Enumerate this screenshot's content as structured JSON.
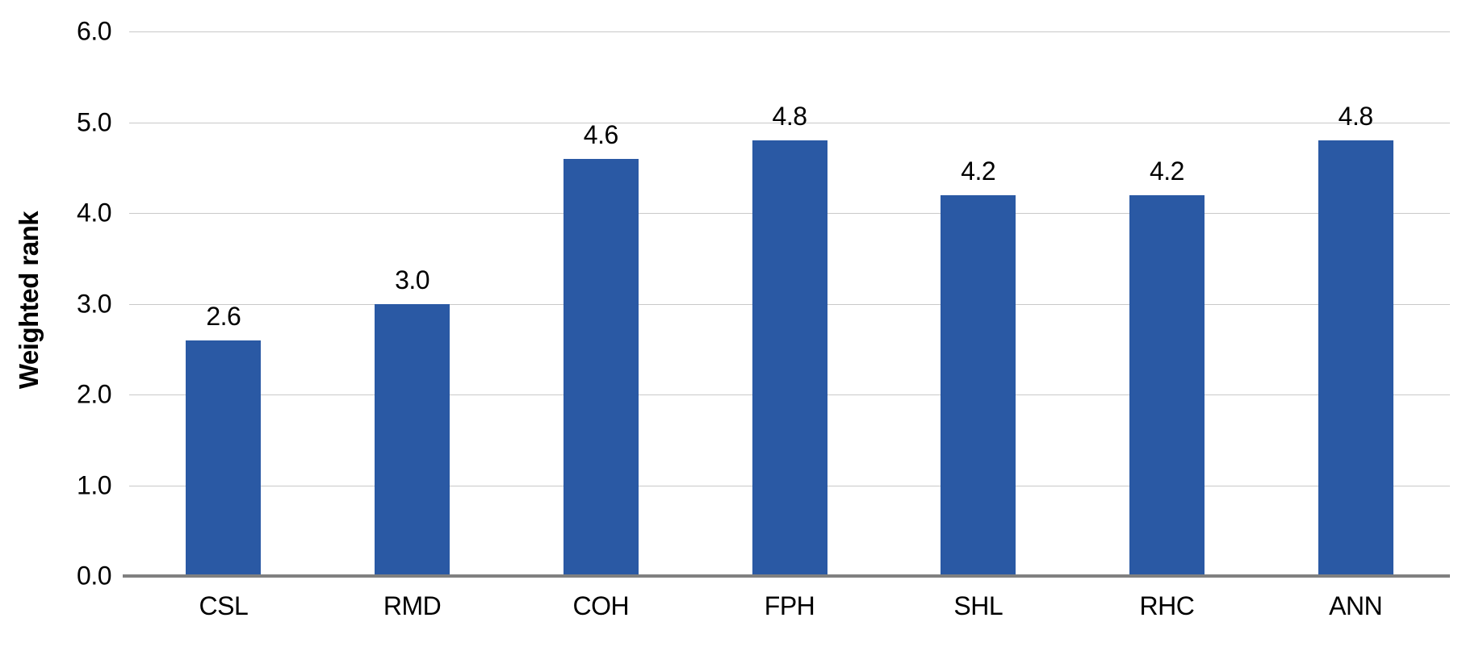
{
  "chart_data": {
    "type": "bar",
    "title": "",
    "xlabel": "",
    "ylabel": "Weighted rank",
    "categories": [
      "CSL",
      "RMD",
      "COH",
      "FPH",
      "SHL",
      "RHC",
      "ANN"
    ],
    "values": [
      2.6,
      3.0,
      4.6,
      4.8,
      4.2,
      4.2,
      4.8
    ],
    "value_labels": [
      "2.6",
      "3.0",
      "4.6",
      "4.8",
      "4.2",
      "4.2",
      "4.8"
    ],
    "ylim": [
      0,
      6
    ],
    "ytick_labels": [
      "6.0",
      "5.0",
      "4.0",
      "3.0",
      "2.0",
      "1.0",
      "0.0"
    ],
    "grid": true,
    "legend_position": "none",
    "bar_color": "#2a59a4",
    "gridline_color": "#c9c9c9",
    "baseline_color": "#808080",
    "text_color": "#000000"
  }
}
